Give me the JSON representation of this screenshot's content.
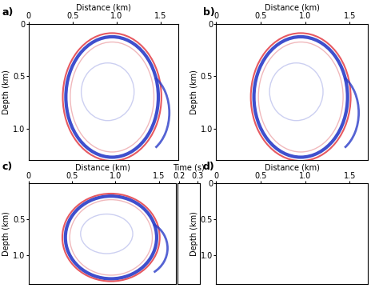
{
  "chart_data": [
    {
      "panel": "a)",
      "type": "image",
      "x_label": "Distance (km)",
      "y_label": "Depth (km)",
      "xlim": [
        0,
        1.7
      ],
      "ylim": [
        1.3,
        0
      ],
      "xticks": [
        {
          "value": 0,
          "label": "0"
        },
        {
          "value": 0.5,
          "label": "0.5"
        },
        {
          "value": 1.0,
          "label": "1.0"
        },
        {
          "value": 1.5,
          "label": "1.5"
        }
      ],
      "yticks": [
        {
          "value": 0,
          "label": "0"
        },
        {
          "value": 0.5,
          "label": "0.5"
        },
        {
          "value": 1.0,
          "label": "1.0"
        }
      ]
    },
    {
      "panel": "b)",
      "type": "image",
      "x_label": "Distance (km)",
      "y_label": "Depth (km)",
      "xlim": [
        0,
        1.7
      ],
      "ylim": [
        1.3,
        0
      ],
      "xticks": [
        {
          "value": 0,
          "label": "0"
        },
        {
          "value": 0.5,
          "label": "0.5"
        },
        {
          "value": 1.0,
          "label": "1.0"
        },
        {
          "value": 1.5,
          "label": "1.5"
        }
      ],
      "yticks": [
        {
          "value": 0,
          "label": "0"
        },
        {
          "value": 0.5,
          "label": "0.5"
        },
        {
          "value": 1.0,
          "label": "1.0"
        }
      ]
    },
    {
      "panel": "c)",
      "type": "image",
      "x_label": "Distance (km)",
      "y_label": "Depth (km)",
      "xlim": [
        0,
        1.7
      ],
      "ylim": [
        1.4,
        0
      ],
      "xticks": [
        {
          "value": 0,
          "label": "0"
        },
        {
          "value": 0.5,
          "label": "0.5"
        },
        {
          "value": 1.0,
          "label": "1.0"
        },
        {
          "value": 1.5,
          "label": "1.5"
        }
      ],
      "yticks": [
        {
          "value": 0.5,
          "label": "0.5"
        },
        {
          "value": 1.0,
          "label": "1.0"
        }
      ]
    },
    {
      "type": "image",
      "x_label": "Time (s)",
      "tick_labels": "x",
      "xlim": [
        0.19,
        0.31
      ],
      "ylim": [
        1.4,
        0
      ],
      "xticks": [
        0.2,
        0.3
      ]
    },
    {
      "panel": "d)",
      "type": "image",
      "x_label": "Distance (km)",
      "y_label": "Depth (km)",
      "xlim": [
        0,
        1.7
      ],
      "ylim": [
        1.4,
        0
      ],
      "xticks": [
        {
          "value": 0,
          "label": "0"
        },
        {
          "value": 0.5,
          "label": "0.5"
        },
        {
          "value": 1.0,
          "label": "1.0"
        },
        {
          "value": 1.5,
          "label": "1.5"
        }
      ],
      "yticks": [
        {
          "value": 0,
          "label": "0"
        },
        {
          "value": 0.5,
          "label": "0.5"
        },
        {
          "value": 1.0,
          "label": "1.0"
        }
      ]
    }
  ]
}
